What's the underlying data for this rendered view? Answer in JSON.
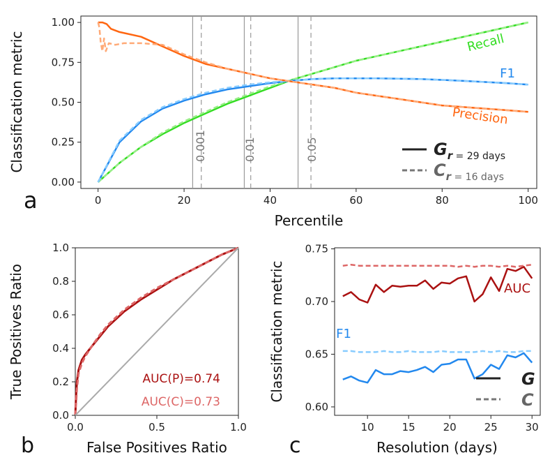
{
  "colors": {
    "recall": "#33dd22",
    "precision": "#ff6611",
    "f1": "#2288ee",
    "precision_light": "#ffaa77",
    "recall_light": "#99ee88",
    "f1_light": "#88ccff",
    "roc": "#aa1111",
    "roc_light": "#dd6666",
    "diag": "#aaaaaa",
    "vline_solid": "#999999",
    "vline_dash": "#999999",
    "legend": "#222222",
    "legend_dash": "#777777"
  },
  "chart_data": [
    {
      "type": "line",
      "panel": "a",
      "xlabel": "Percentile",
      "ylabel": "Classification metric",
      "xlim": [
        -4,
        102
      ],
      "ylim": [
        -0.04,
        1.04
      ],
      "xticks": [
        "0",
        "20",
        "40",
        "60",
        "80",
        "100"
      ],
      "yticks": [
        "0.00",
        "0.25",
        "0.50",
        "0.75",
        "1.00"
      ],
      "series": [
        {
          "name": "Recall",
          "color": "recall",
          "dashed": false,
          "x": [
            0,
            5,
            10,
            15,
            20,
            25,
            30,
            35,
            40,
            45,
            50,
            55,
            60,
            65,
            70,
            75,
            80,
            85,
            90,
            95,
            100
          ],
          "values": [
            0,
            0.12,
            0.22,
            0.3,
            0.37,
            0.43,
            0.49,
            0.54,
            0.59,
            0.64,
            0.68,
            0.72,
            0.76,
            0.79,
            0.82,
            0.85,
            0.88,
            0.91,
            0.94,
            0.97,
            1.0
          ]
        },
        {
          "name": "Recall C",
          "color": "recall_light",
          "dashed": true,
          "x": [
            0,
            5,
            10,
            15,
            20,
            25,
            30,
            35,
            40,
            45,
            50,
            55,
            60,
            65,
            70,
            75,
            80,
            85,
            90,
            95,
            100
          ],
          "values": [
            0,
            0.12,
            0.22,
            0.31,
            0.38,
            0.44,
            0.5,
            0.55,
            0.6,
            0.64,
            0.68,
            0.72,
            0.76,
            0.79,
            0.82,
            0.85,
            0.88,
            0.91,
            0.94,
            0.97,
            1.0
          ]
        },
        {
          "name": "F1",
          "color": "f1",
          "dashed": false,
          "x": [
            0,
            5,
            10,
            15,
            20,
            25,
            30,
            35,
            40,
            45,
            50,
            55,
            60,
            65,
            70,
            75,
            80,
            85,
            90,
            95,
            100
          ],
          "values": [
            0,
            0.25,
            0.38,
            0.46,
            0.51,
            0.55,
            0.58,
            0.6,
            0.62,
            0.635,
            0.645,
            0.65,
            0.65,
            0.65,
            0.648,
            0.645,
            0.64,
            0.634,
            0.627,
            0.62,
            0.61
          ]
        },
        {
          "name": "F1 C",
          "color": "f1_light",
          "dashed": true,
          "x": [
            0,
            5,
            10,
            15,
            20,
            25,
            30,
            35,
            40,
            45,
            50,
            55,
            60,
            65,
            70,
            75,
            80,
            85,
            90,
            95,
            100
          ],
          "values": [
            0,
            0.26,
            0.39,
            0.47,
            0.52,
            0.56,
            0.59,
            0.61,
            0.625,
            0.635,
            0.645,
            0.65,
            0.65,
            0.65,
            0.648,
            0.645,
            0.64,
            0.634,
            0.627,
            0.62,
            0.61
          ]
        },
        {
          "name": "Precision",
          "color": "precision",
          "dashed": false,
          "x": [
            0,
            1,
            2,
            3,
            5,
            10,
            15,
            20,
            25,
            30,
            35,
            40,
            45,
            50,
            55,
            60,
            65,
            70,
            75,
            80,
            85,
            90,
            95,
            100
          ],
          "values": [
            1.0,
            1.0,
            0.99,
            0.96,
            0.94,
            0.91,
            0.85,
            0.79,
            0.74,
            0.71,
            0.68,
            0.65,
            0.63,
            0.61,
            0.59,
            0.56,
            0.54,
            0.52,
            0.5,
            0.48,
            0.47,
            0.46,
            0.45,
            0.44
          ]
        },
        {
          "name": "Precision C",
          "color": "precision_light",
          "dashed": true,
          "x": [
            0,
            0.3,
            0.6,
            1,
            1.4,
            1.8,
            2.5,
            4,
            6,
            10,
            15,
            20,
            25,
            30,
            35,
            40,
            45,
            50,
            55,
            60,
            65,
            70,
            75,
            80,
            85,
            90,
            95,
            100
          ],
          "values": [
            1.0,
            0.97,
            0.88,
            0.82,
            0.9,
            0.82,
            0.87,
            0.86,
            0.87,
            0.87,
            0.86,
            0.8,
            0.75,
            0.71,
            0.68,
            0.65,
            0.63,
            0.61,
            0.59,
            0.56,
            0.54,
            0.52,
            0.5,
            0.48,
            0.47,
            0.46,
            0.45,
            0.44
          ]
        }
      ],
      "vlines_solid": [
        22,
        34,
        46.5
      ],
      "vlines_dashed": [
        24,
        35.5,
        49.5
      ],
      "vline_labels": [
        "0.001",
        "0.01",
        "0.05"
      ],
      "curve_labels": {
        "recall": "Recall",
        "f1": "F1",
        "precision": "Precision"
      },
      "legend": {
        "position": "lower-right",
        "g_symbol": "G",
        "g_sub": "r",
        "g_text": " = 29 days",
        "c_symbol": "C",
        "c_sub": "r",
        "c_text": " = 16 days"
      },
      "panel_label": "a"
    },
    {
      "type": "line",
      "panel": "b",
      "xlabel": "False Positives Ratio",
      "ylabel": "True Positives Ratio",
      "xlim": [
        0,
        1
      ],
      "ylim": [
        0,
        1
      ],
      "xticks": [
        "0.0",
        "0.5",
        "1.0"
      ],
      "yticks": [
        "0.0",
        "0.2",
        "0.4",
        "0.6",
        "0.8",
        "1.0"
      ],
      "series": [
        {
          "name": "ROC P",
          "color": "roc",
          "dashed": false,
          "x": [
            0,
            0.005,
            0.01,
            0.02,
            0.04,
            0.06,
            0.1,
            0.15,
            0.2,
            0.3,
            0.4,
            0.5,
            0.6,
            0.7,
            0.8,
            0.9,
            1.0
          ],
          "values": [
            0,
            0.12,
            0.2,
            0.27,
            0.33,
            0.36,
            0.41,
            0.47,
            0.53,
            0.62,
            0.69,
            0.75,
            0.81,
            0.86,
            0.91,
            0.96,
            1.0
          ]
        },
        {
          "name": "ROC C",
          "color": "roc_light",
          "dashed": true,
          "x": [
            0,
            0.005,
            0.01,
            0.02,
            0.04,
            0.06,
            0.1,
            0.15,
            0.2,
            0.3,
            0.4,
            0.5,
            0.6,
            0.7,
            0.8,
            0.9,
            1.0
          ],
          "values": [
            0,
            0.08,
            0.16,
            0.25,
            0.31,
            0.35,
            0.41,
            0.48,
            0.54,
            0.63,
            0.7,
            0.76,
            0.81,
            0.86,
            0.91,
            0.96,
            1.0
          ]
        },
        {
          "name": "Chance",
          "color": "diag",
          "dashed": false,
          "x": [
            0,
            1
          ],
          "values": [
            0,
            1
          ]
        }
      ],
      "annotations": [
        {
          "text": "AUC(P)=0.74",
          "color": "roc"
        },
        {
          "text": "AUC(C)=0.73",
          "color": "roc_light"
        }
      ],
      "panel_label": "b"
    },
    {
      "type": "line",
      "panel": "c",
      "xlabel": "Resolution (days)",
      "ylabel": "Classification metric",
      "xlim": [
        6,
        31
      ],
      "ylim": [
        0.592,
        0.751
      ],
      "xticks": [
        "10",
        "15",
        "20",
        "25",
        "30"
      ],
      "yticks": [
        "0.60",
        "0.65",
        "0.70",
        "0.75"
      ],
      "series": [
        {
          "name": "AUC G",
          "color": "roc",
          "dashed": false,
          "x": [
            7,
            8,
            9,
            10,
            11,
            12,
            13,
            14,
            15,
            16,
            17,
            18,
            19,
            20,
            21,
            22,
            23,
            24,
            25,
            26,
            27,
            28,
            29,
            30
          ],
          "values": [
            0.705,
            0.709,
            0.702,
            0.699,
            0.716,
            0.709,
            0.715,
            0.714,
            0.715,
            0.715,
            0.72,
            0.712,
            0.718,
            0.717,
            0.722,
            0.724,
            0.7,
            0.707,
            0.723,
            0.71,
            0.731,
            0.729,
            0.733,
            0.722
          ]
        },
        {
          "name": "AUC C",
          "color": "roc_light",
          "dashed": true,
          "x": [
            7,
            8,
            9,
            10,
            11,
            12,
            13,
            14,
            15,
            16,
            17,
            18,
            19,
            20,
            21,
            22,
            23,
            24,
            25,
            26,
            27,
            28,
            29,
            30
          ],
          "values": [
            0.734,
            0.735,
            0.734,
            0.734,
            0.734,
            0.734,
            0.734,
            0.734,
            0.734,
            0.734,
            0.734,
            0.734,
            0.734,
            0.734,
            0.733,
            0.734,
            0.733,
            0.734,
            0.734,
            0.733,
            0.734,
            0.733,
            0.734,
            0.735
          ]
        },
        {
          "name": "F1 G",
          "color": "f1",
          "dashed": false,
          "x": [
            7,
            8,
            9,
            10,
            11,
            12,
            13,
            14,
            15,
            16,
            17,
            18,
            19,
            20,
            21,
            22,
            23,
            24,
            25,
            26,
            27,
            28,
            29,
            30
          ],
          "values": [
            0.626,
            0.629,
            0.625,
            0.623,
            0.635,
            0.631,
            0.631,
            0.634,
            0.633,
            0.635,
            0.638,
            0.633,
            0.64,
            0.641,
            0.645,
            0.645,
            0.627,
            0.631,
            0.64,
            0.636,
            0.649,
            0.647,
            0.651,
            0.642
          ]
        },
        {
          "name": "F1 C",
          "color": "f1_light",
          "dashed": true,
          "x": [
            7,
            8,
            9,
            10,
            11,
            12,
            13,
            14,
            15,
            16,
            17,
            18,
            19,
            20,
            21,
            22,
            23,
            24,
            25,
            26,
            27,
            28,
            29,
            30
          ],
          "values": [
            0.653,
            0.653,
            0.652,
            0.652,
            0.652,
            0.653,
            0.652,
            0.652,
            0.653,
            0.652,
            0.652,
            0.652,
            0.653,
            0.652,
            0.652,
            0.652,
            0.652,
            0.653,
            0.652,
            0.653,
            0.652,
            0.652,
            0.653,
            0.653
          ]
        }
      ],
      "annotations": [
        {
          "text": "AUC",
          "color": "roc"
        },
        {
          "text": "F1",
          "color": "f1"
        }
      ],
      "legend": {
        "position": "lower-right",
        "g_symbol": "G",
        "c_symbol": "C"
      },
      "panel_label": "c"
    }
  ]
}
